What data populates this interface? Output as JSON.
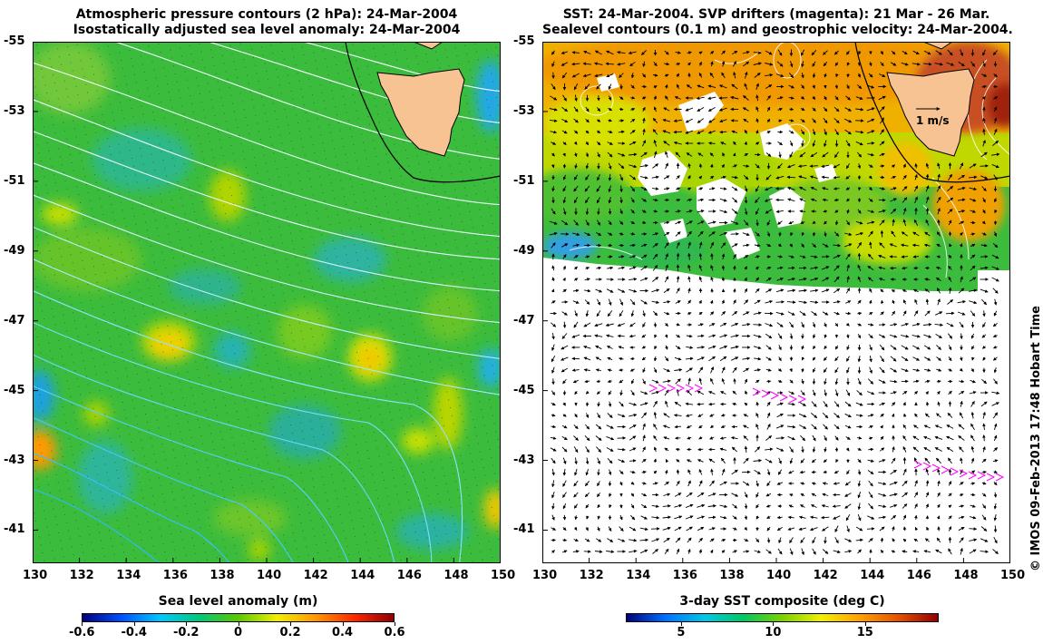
{
  "left_panel": {
    "title_line1": "Atmospheric pressure contours (2 hPa): 24-Mar-2004",
    "title_line2": "Isostatically adjusted sea level anomaly: 24-Mar-2004",
    "colorbar": {
      "title": "Sea level anomaly (m)",
      "ticks": [
        "-0.6",
        "-0.4",
        "-0.2",
        "0",
        "0.2",
        "0.4",
        "0.6"
      ],
      "tick_values": [
        -0.6,
        -0.4,
        -0.2,
        0,
        0.2,
        0.4,
        0.6
      ],
      "range": [
        -0.6,
        0.6
      ]
    }
  },
  "right_panel": {
    "title_line1": "SST: 24-Mar-2004. SVP drifters (magenta): 21 Mar - 26 Mar.",
    "title_line2": "Sealevel contours (0.1 m) and geostrophic velocity: 24-Mar-2004.",
    "scale_arrow_label": "1 m/s",
    "colorbar": {
      "title": "3-day SST composite (deg C)",
      "ticks": [
        "5",
        "10",
        "15"
      ],
      "tick_values": [
        5,
        10,
        15
      ],
      "range": [
        2,
        19
      ]
    }
  },
  "axes": {
    "lon_ticks": [
      "130",
      "132",
      "134",
      "136",
      "138",
      "140",
      "142",
      "144",
      "146",
      "148",
      "150"
    ],
    "lon_values": [
      130,
      132,
      134,
      136,
      138,
      140,
      142,
      144,
      146,
      148,
      150
    ],
    "lat_ticks": [
      "-41",
      "-43",
      "-45",
      "-47",
      "-49",
      "-51",
      "-53",
      "-55"
    ],
    "lat_values": [
      -41,
      -43,
      -45,
      -47,
      -49,
      -51,
      -53,
      -55
    ],
    "lon_range": [
      130,
      150
    ],
    "lat_range": [
      -40.05,
      -55
    ]
  },
  "credit": "© IMOS 09-Feb-2013 17:48 Hobart Time",
  "colors": {
    "land": "#f7c393",
    "ssh_cmap": [
      "#00007f",
      "#0050ff",
      "#00c8ff",
      "#00c878",
      "#5ac800",
      "#f0f000",
      "#ff9600",
      "#ff2800",
      "#900000"
    ],
    "sst_cmap": [
      "#00007f",
      "#0070ff",
      "#00c8e6",
      "#00c864",
      "#7ad200",
      "#f0f000",
      "#ffa000",
      "#e65000",
      "#900000"
    ],
    "drifter": "#ff00ff"
  }
}
